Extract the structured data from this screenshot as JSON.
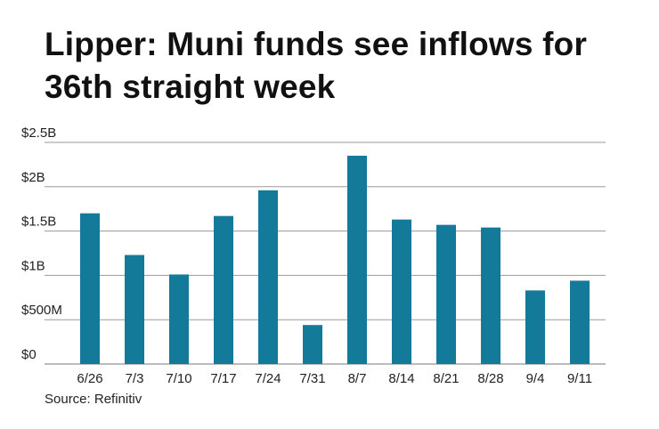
{
  "chart_data": {
    "type": "bar",
    "title": "Lipper: Muni funds see inflows for 36th straight week",
    "source": "Source: Refinitiv",
    "categories": [
      "6/26",
      "7/3",
      "7/10",
      "7/17",
      "7/24",
      "7/31",
      "8/7",
      "8/14",
      "8/21",
      "8/28",
      "9/4",
      "9/11"
    ],
    "values": [
      1.7,
      1.23,
      1.01,
      1.67,
      1.96,
      0.44,
      2.35,
      1.63,
      1.57,
      1.54,
      0.83,
      0.94
    ],
    "unit": "billions of dollars",
    "y_ticks": [
      {
        "value": 0,
        "label": "$0"
      },
      {
        "value": 0.5,
        "label": "$500M"
      },
      {
        "value": 1,
        "label": "$1B"
      },
      {
        "value": 1.5,
        "label": "$1.5B"
      },
      {
        "value": 2,
        "label": "$2B"
      },
      {
        "value": 2.5,
        "label": "$2.5B"
      }
    ],
    "ylim": [
      0,
      2.5
    ],
    "grid": true,
    "legend": "none",
    "bar_color": "#137b99",
    "grid_color": "#9a9a9a"
  }
}
